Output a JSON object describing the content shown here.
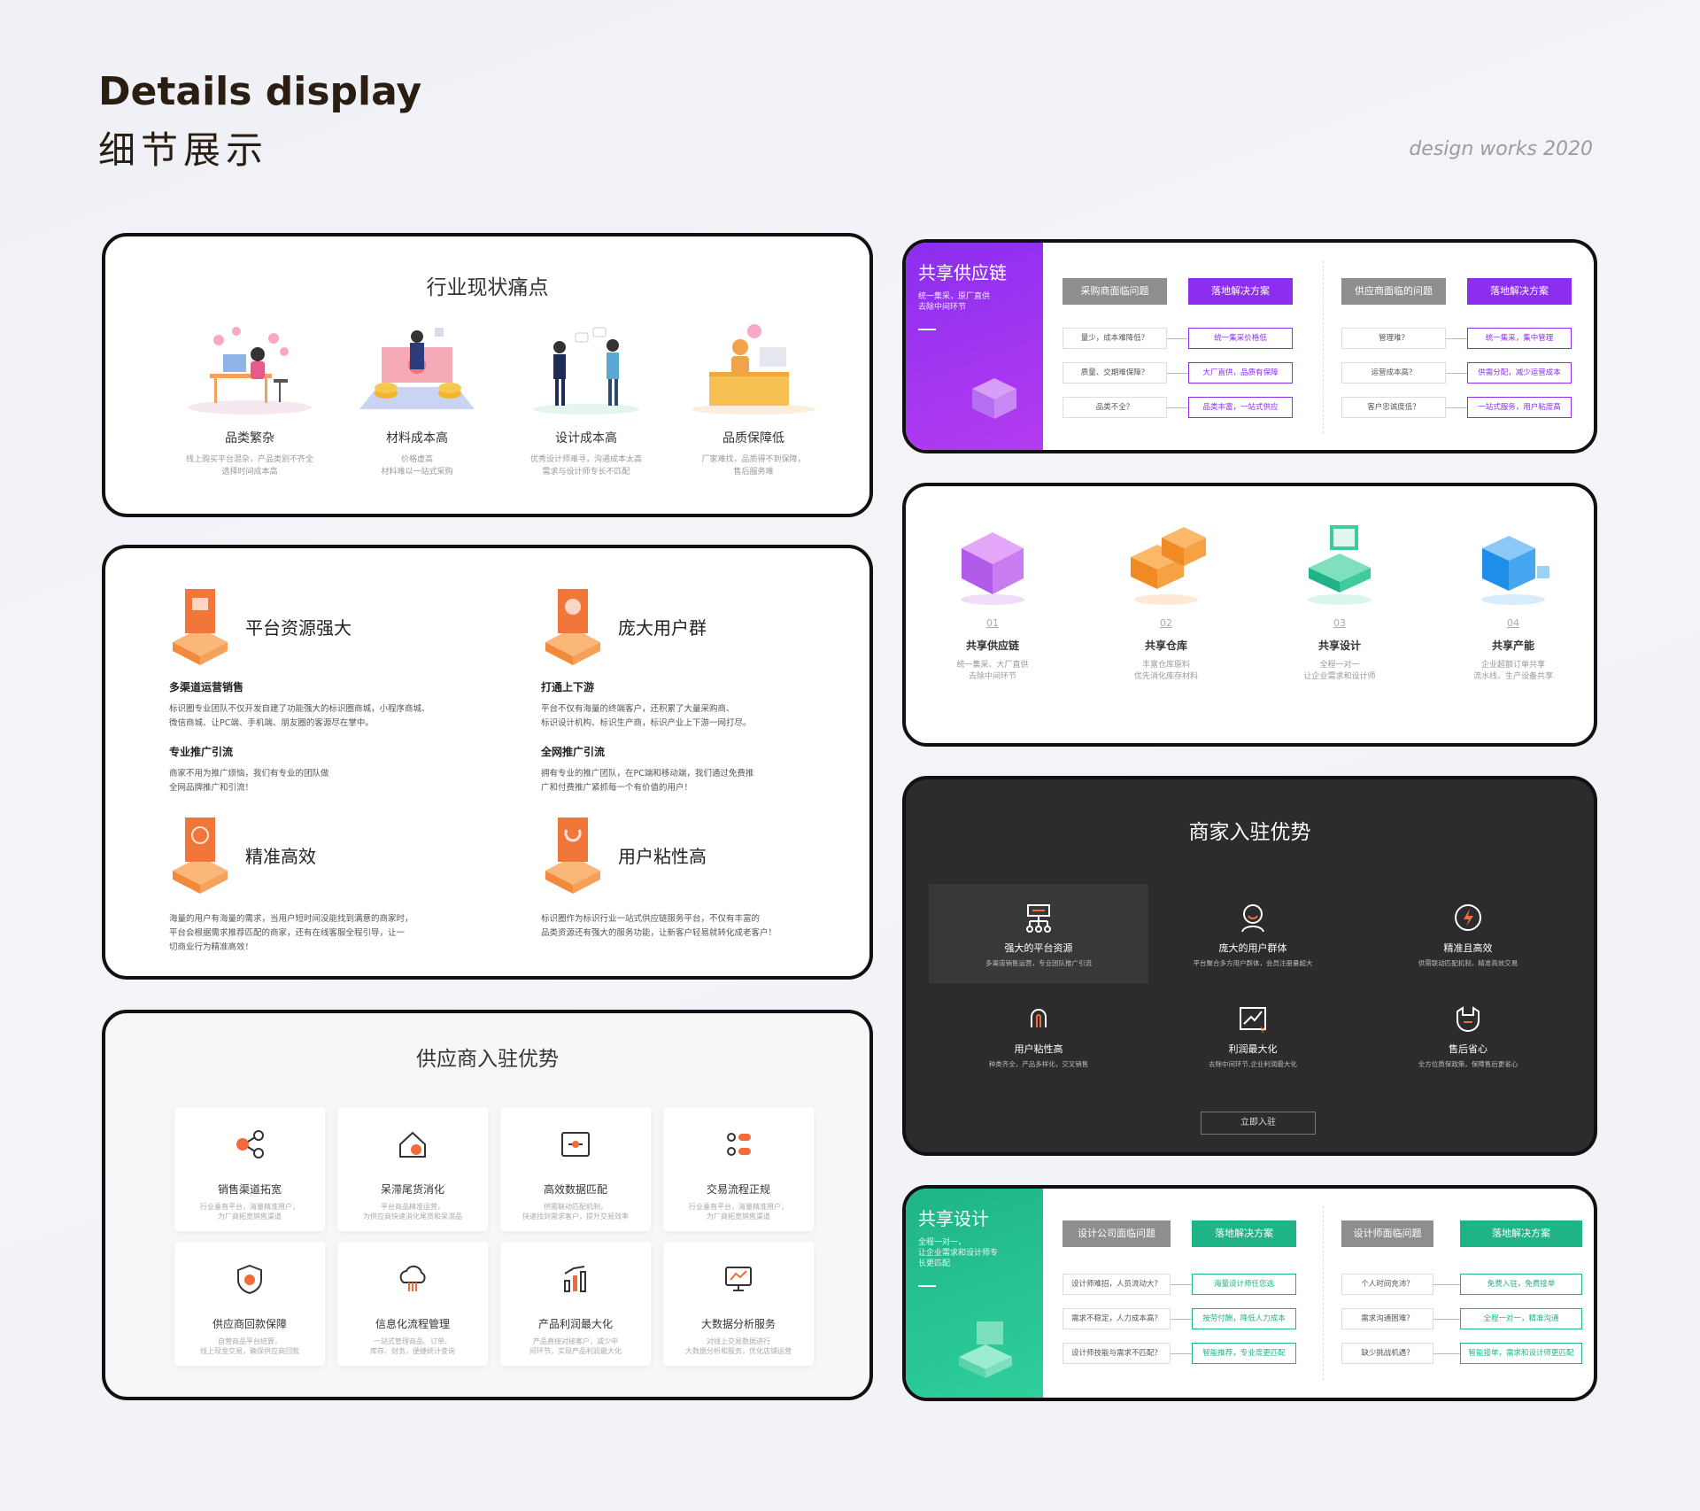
{
  "header": {
    "title_en": "Details display",
    "title_cn": "细节展示",
    "tag": "design works 2020"
  },
  "pain_points": {
    "title": "行业现状痛点",
    "items": [
      {
        "title": "品类繁杂",
        "desc1": "线上购买平台混杂，产品类别不齐全",
        "desc2": "选择时间成本高"
      },
      {
        "title": "材料成本高",
        "desc1": "价格虚高",
        "desc2": "材料难以一站式采购"
      },
      {
        "title": "设计成本高",
        "desc1": "优秀设计师难寻，沟通成本太高",
        "desc2": "需求与设计师专长不匹配"
      },
      {
        "title": "品质保障低",
        "desc1": "厂家难找，品质得不到保障，",
        "desc2": "售后服务难"
      }
    ]
  },
  "advantages": {
    "blocks": [
      {
        "title": "平台资源强大",
        "sub1": "多渠道运营销售",
        "txt1a": "标识圈专业团队不仅开发自建了功能强大的标识圈商城，小程序商城、",
        "txt1b": "微信商城、让PC端、手机端、朋友圈的客源尽在掌中。",
        "sub2": "专业推广引流",
        "txt2a": "商家不用为推广烦恼，我们有专业的团队做",
        "txt2b": "全网品牌推广和引流！"
      },
      {
        "title": "庞大用户群",
        "sub1": "打通上下游",
        "txt1a": "平台不仅有海量的终端客户，还积累了大量采购商、",
        "txt1b": "标识设计机构、标识生产商，标识产业上下游一网打尽。",
        "sub2": "全网推广引流",
        "txt2a": "拥有专业的推广团队，在PC端和移动端，我们通过免费推",
        "txt2b": "广和付费推广紧抓每一个有价值的用户！"
      },
      {
        "title": "精准高效",
        "txt1a": "海量的用户有海量的需求，当用户短时间没能找到满意的商家时，",
        "txt1b": "平台会根据需求推荐匹配的商家，还有在线客服全程引导，让一",
        "txt1c": "切商业行为精准高效！"
      },
      {
        "title": "用户粘性高",
        "txt1a": "标识圈作为标识行业一站式供应链服务平台，不仅有丰富的",
        "txt1b": "品类资源还有强大的服务功能，让新客户轻易就转化成老客户！"
      }
    ]
  },
  "supplier": {
    "title": "供应商入驻优势",
    "tiles": [
      {
        "icon": "share-icon",
        "title": "销售渠道拓宽",
        "d1": "行业垂直平台，海量精准用户，",
        "d2": "为厂商拓宽销售渠道"
      },
      {
        "icon": "home-icon",
        "title": "呆滞尾货消化",
        "d1": "平台商品精准运营，",
        "d2": "为供应商快速消化尾货和呆滞品"
      },
      {
        "icon": "match-icon",
        "title": "高效数据匹配",
        "d1": "供需联动匹配机制，",
        "d2": "快速找到需求客户，提升交易效率"
      },
      {
        "icon": "flow-icon",
        "title": "交易流程正规",
        "d1": "行业垂直平台，海量精准用户，",
        "d2": "为厂商拓宽销售渠道"
      },
      {
        "icon": "shield-icon",
        "title": "供应商回款保障",
        "d1": "自营商品平台结算，",
        "d2": "线上现金交易，确保供应商回款"
      },
      {
        "icon": "cloud-icon",
        "title": "信息化流程管理",
        "d1": "一站式管理商品、订单、",
        "d2": "库存、财务，便捷统计查询"
      },
      {
        "icon": "chart-icon",
        "title": "产品利润最大化",
        "d1": "产品直接对接客户，减少中",
        "d2": "间环节，实现产品利润最大化"
      },
      {
        "icon": "analytics-icon",
        "title": "大数据分析服务",
        "d1": "对线上交易数据进行",
        "d2": "大数据分析和服务，优化店铺运营"
      }
    ]
  },
  "supply_chain": {
    "side_title": "共享供应链",
    "side_desc1": "统一集采，原厂直供",
    "side_desc2": "去除中间环节",
    "colors": {
      "accent": "#8c2ef0",
      "accent2": "#b43cf0"
    },
    "left": {
      "q_head": "采购商面临问题",
      "a_head": "落地解决方案",
      "rows": [
        {
          "q": "量少，成本难降低？",
          "a": "统一集采价格低"
        },
        {
          "q": "质量、交期难保障？",
          "a": "大厂直供，品质有保障"
        },
        {
          "q": "品类不全？",
          "a": "品类丰富，一站式供应"
        }
      ]
    },
    "right": {
      "q_head": "供应商面临的问题",
      "a_head": "落地解决方案",
      "rows": [
        {
          "q": "管理难？",
          "a": "统一集采，集中管理"
        },
        {
          "q": "运营成本高？",
          "a": "供需分配，减少运营成本"
        },
        {
          "q": "客户忠诚度低？",
          "a": "一站式服务，用户粘度高"
        }
      ]
    }
  },
  "services": [
    {
      "num": "01",
      "title": "共享供应链",
      "d1": "统一集采、大厂直供",
      "d2": "去除中间环节"
    },
    {
      "num": "02",
      "title": "共享仓库",
      "d1": "丰富仓库原料",
      "d2": "优先消化库存材料"
    },
    {
      "num": "03",
      "title": "共享设计",
      "d1": "全程一对一",
      "d2": "让企业需求和设计师"
    },
    {
      "num": "04",
      "title": "共享产能",
      "d1": "企业超额订单共享",
      "d2": "流水线、生产设备共享"
    }
  ],
  "merchant": {
    "title": "商家入驻优势",
    "items": [
      {
        "icon": "platform-icon",
        "title": "强大的平台资源",
        "desc": "多渠道销售运营，专业团队推广引流"
      },
      {
        "icon": "users-icon",
        "title": "庞大的用户群体",
        "desc": "平台聚合多方用户群体，会员注册量超大"
      },
      {
        "icon": "lightning-icon",
        "title": "精准且高效",
        "desc": "供需联动匹配机制，精准高效交易"
      },
      {
        "icon": "magnet-icon",
        "title": "用户粘性高",
        "desc": "种类齐全，产品多样化，交叉销售"
      },
      {
        "icon": "profit-icon",
        "title": "利润最大化",
        "desc": "去除中间环节,企业利润最大化"
      },
      {
        "icon": "service-icon",
        "title": "售后省心",
        "desc": "全方位质保政策，保障售后更省心"
      }
    ],
    "button": "立即入驻"
  },
  "shared_design": {
    "side_title": "共享设计",
    "side_desc1": "全程一对一，",
    "side_desc2": "让企业需求和设计师专",
    "side_desc3": "长更匹配",
    "colors": {
      "accent": "#1fb488",
      "accent2": "#2fcf9c"
    },
    "left": {
      "q_head": "设计公司面临问题",
      "a_head": "落地解决方案",
      "rows": [
        {
          "q": "设计师难招，人员流动大？",
          "a": "海量设计师任您选"
        },
        {
          "q": "需求不稳定，人力成本高？",
          "a": "按劳付酬，降低人力成本"
        },
        {
          "q": "设计师技能与需求不匹配？",
          "a": "智能推荐，专业度更匹配"
        }
      ]
    },
    "right": {
      "q_head": "设计师面临问题",
      "a_head": "落地解决方案",
      "rows": [
        {
          "q": "个人时间充沛？",
          "a": "免费入驻，免费接单"
        },
        {
          "q": "需求沟通困难？",
          "a": "全程一对一，精准沟通"
        },
        {
          "q": "缺少挑战机遇？",
          "a": "智能接单，需求和设计师更匹配"
        }
      ]
    }
  }
}
